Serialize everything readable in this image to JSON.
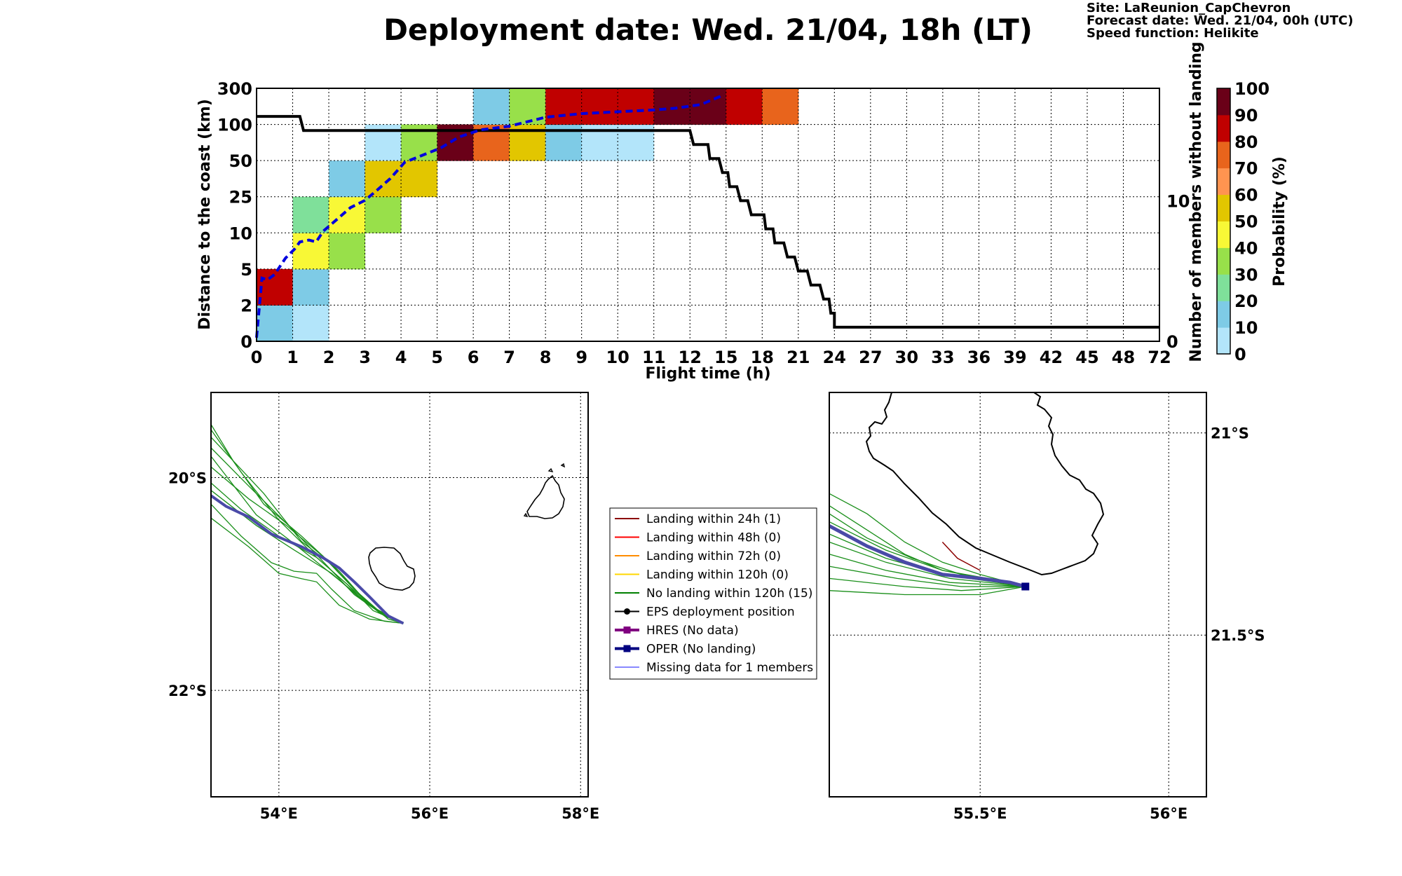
{
  "header": {
    "title": "Deployment date: Wed. 21/04, 18h (LT)",
    "info": [
      "Site: LaReunion_CapChevron",
      "Forecast date: Wed. 21/04, 00h (UTC)",
      "Speed function: Helikite"
    ]
  },
  "chart_data": [
    {
      "type": "heatmap",
      "xlabel": "Flight time (h)",
      "ylabel": "Distance to the coast (km)",
      "y2label": "Number of members without landing",
      "x_ticks": [
        "0",
        "1",
        "2",
        "3",
        "4",
        "5",
        "6",
        "7",
        "8",
        "9",
        "10",
        "11",
        "12",
        "15",
        "18",
        "21",
        "24",
        "27",
        "30",
        "33",
        "36",
        "39",
        "42",
        "45",
        "48",
        "72"
      ],
      "y_ticks": [
        "0",
        "2",
        "5",
        "10",
        "25",
        "50",
        "100",
        "300"
      ],
      "y2_ticks": [
        {
          "label": "0",
          "value": 0
        },
        {
          "label": "10",
          "value": 10
        }
      ],
      "y2lim": [
        0,
        18
      ],
      "colorbar": {
        "label": "Probability (%)",
        "ticks": [
          "0",
          "10",
          "20",
          "30",
          "40",
          "50",
          "60",
          "70",
          "80",
          "90",
          "100"
        ],
        "colors": [
          "#b3e5fa",
          "#7ecbe6",
          "#7fe09a",
          "#98e04a",
          "#f8f836",
          "#e2c600",
          "#ff9450",
          "#e8641c",
          "#c00000",
          "#6a0018"
        ]
      },
      "cells": [
        {
          "x": 0,
          "y": 0,
          "p": 10
        },
        {
          "x": 0,
          "y": 1,
          "p": 80
        },
        {
          "x": 1,
          "y": 0,
          "p": 5
        },
        {
          "x": 1,
          "y": 1,
          "p": 10
        },
        {
          "x": 1,
          "y": 2,
          "p": 40
        },
        {
          "x": 1,
          "y": 3,
          "p": 20
        },
        {
          "x": 2,
          "y": 2,
          "p": 30
        },
        {
          "x": 2,
          "y": 3,
          "p": 40
        },
        {
          "x": 2,
          "y": 4,
          "p": 10
        },
        {
          "x": 3,
          "y": 3,
          "p": 30
        },
        {
          "x": 3,
          "y": 4,
          "p": 50
        },
        {
          "x": 3,
          "y": 5,
          "p": 5
        },
        {
          "x": 4,
          "y": 4,
          "p": 50
        },
        {
          "x": 4,
          "y": 5,
          "p": 30
        },
        {
          "x": 5,
          "y": 5,
          "p": 95
        },
        {
          "x": 6,
          "y": 5,
          "p": 70
        },
        {
          "x": 6,
          "y": 6,
          "p": 10
        },
        {
          "x": 7,
          "y": 5,
          "p": 50
        },
        {
          "x": 7,
          "y": 6,
          "p": 30
        },
        {
          "x": 8,
          "y": 5,
          "p": 10
        },
        {
          "x": 8,
          "y": 6,
          "p": 85
        },
        {
          "x": 9,
          "y": 5,
          "p": 5
        },
        {
          "x": 9,
          "y": 6,
          "p": 85
        },
        {
          "x": 10,
          "y": 5,
          "p": 5
        },
        {
          "x": 10,
          "y": 6,
          "p": 85
        },
        {
          "x": 11,
          "y": 6,
          "p": 95
        },
        {
          "x": 12,
          "y": 6,
          "p": 95
        },
        {
          "x": 13,
          "y": 6,
          "p": 85
        },
        {
          "x": 14,
          "y": 6,
          "p": 75
        }
      ],
      "median_distance": [
        [
          0,
          0.1
        ],
        [
          0.15,
          1.75
        ],
        [
          0.3,
          1.7
        ],
        [
          0.5,
          1.85
        ],
        [
          0.8,
          2.3
        ],
        [
          1.05,
          2.55
        ],
        [
          1.2,
          2.75
        ],
        [
          1.45,
          2.8
        ],
        [
          1.65,
          2.75
        ],
        [
          1.85,
          3.05
        ],
        [
          2.2,
          3.35
        ],
        [
          2.6,
          3.7
        ],
        [
          3,
          3.9
        ],
        [
          3.3,
          4.15
        ],
        [
          3.7,
          4.5
        ],
        [
          4.1,
          4.95
        ],
        [
          4.6,
          5.15
        ],
        [
          5.1,
          5.35
        ],
        [
          5.6,
          5.65
        ],
        [
          6.2,
          5.85
        ],
        [
          7,
          5.95
        ],
        [
          8,
          6.2
        ],
        [
          9,
          6.3
        ],
        [
          10,
          6.35
        ],
        [
          11,
          6.4
        ],
        [
          11.6,
          6.45
        ],
        [
          12.3,
          6.55
        ],
        [
          12.9,
          6.8
        ]
      ],
      "members_without_landing": [
        [
          0,
          16
        ],
        [
          1.2,
          16
        ],
        [
          1.3,
          15
        ],
        [
          12,
          15
        ],
        [
          12.1,
          14
        ],
        [
          12.5,
          14
        ],
        [
          12.55,
          13
        ],
        [
          12.8,
          13
        ],
        [
          12.9,
          12
        ],
        [
          13.05,
          12
        ],
        [
          13.1,
          11
        ],
        [
          13.3,
          11
        ],
        [
          13.4,
          10
        ],
        [
          13.6,
          10
        ],
        [
          13.7,
          9
        ],
        [
          14.05,
          9
        ],
        [
          14.1,
          8
        ],
        [
          14.3,
          8
        ],
        [
          14.35,
          7
        ],
        [
          14.6,
          7
        ],
        [
          14.7,
          6
        ],
        [
          14.9,
          6
        ],
        [
          15,
          5
        ],
        [
          15.25,
          5
        ],
        [
          15.35,
          4
        ],
        [
          15.6,
          4
        ],
        [
          15.7,
          3
        ],
        [
          15.85,
          3
        ],
        [
          15.9,
          2
        ],
        [
          16,
          2
        ],
        [
          16,
          1
        ],
        [
          25,
          1
        ]
      ]
    },
    {
      "type": "map",
      "name": "regional",
      "lon_range": [
        53.1,
        58.1
      ],
      "lat_range": [
        -23.0,
        -19.2
      ],
      "lon_ticks": [
        {
          "label": "54°E",
          "value": 54
        },
        {
          "label": "56°E",
          "value": 56
        },
        {
          "label": "58°E",
          "value": 58
        }
      ],
      "lat_ticks": [
        {
          "label": "20°S",
          "value": -20
        },
        {
          "label": "22°S",
          "value": -22
        }
      ],
      "start": [
        55.65,
        -21.37
      ],
      "oper_track": [
        [
          53.1,
          -20.17
        ],
        [
          53.3,
          -20.27
        ],
        [
          53.6,
          -20.37
        ],
        [
          53.9,
          -20.53
        ],
        [
          54.3,
          -20.65
        ],
        [
          54.6,
          -20.76
        ],
        [
          54.8,
          -20.85
        ],
        [
          55.0,
          -20.98
        ],
        [
          55.2,
          -21.12
        ],
        [
          55.45,
          -21.3
        ],
        [
          55.65,
          -21.37
        ]
      ],
      "member_tracks": [
        [
          [
            53.1,
            -19.5
          ],
          [
            53.4,
            -19.85
          ],
          [
            53.8,
            -20.25
          ],
          [
            54.3,
            -20.55
          ],
          [
            54.8,
            -20.88
          ],
          [
            55.2,
            -21.2
          ],
          [
            55.65,
            -21.37
          ]
        ],
        [
          [
            53.1,
            -19.55
          ],
          [
            53.5,
            -19.95
          ],
          [
            54.0,
            -20.4
          ],
          [
            54.5,
            -20.75
          ],
          [
            54.9,
            -21.0
          ],
          [
            55.25,
            -21.25
          ],
          [
            55.65,
            -21.37
          ]
        ],
        [
          [
            53.1,
            -19.72
          ],
          [
            53.6,
            -20.08
          ],
          [
            54.2,
            -20.5
          ],
          [
            54.6,
            -20.8
          ],
          [
            55.0,
            -21.1
          ],
          [
            55.4,
            -21.3
          ],
          [
            55.65,
            -21.37
          ]
        ],
        [
          [
            53.1,
            -19.9
          ],
          [
            53.6,
            -20.2
          ],
          [
            54.1,
            -20.45
          ],
          [
            54.6,
            -20.75
          ],
          [
            55.0,
            -21.05
          ],
          [
            55.4,
            -21.3
          ],
          [
            55.65,
            -21.37
          ]
        ],
        [
          [
            53.1,
            -20.05
          ],
          [
            53.5,
            -20.3
          ],
          [
            54.0,
            -20.55
          ],
          [
            54.5,
            -20.75
          ],
          [
            54.9,
            -21.0
          ],
          [
            55.3,
            -21.25
          ],
          [
            55.65,
            -21.37
          ]
        ],
        [
          [
            53.1,
            -20.25
          ],
          [
            53.5,
            -20.55
          ],
          [
            53.9,
            -20.8
          ],
          [
            54.2,
            -20.88
          ],
          [
            54.5,
            -20.9
          ],
          [
            54.7,
            -21.05
          ],
          [
            55.0,
            -21.25
          ],
          [
            55.4,
            -21.35
          ],
          [
            55.65,
            -21.37
          ]
        ],
        [
          [
            53.1,
            -20.38
          ],
          [
            53.6,
            -20.65
          ],
          [
            54.0,
            -20.9
          ],
          [
            54.3,
            -20.95
          ],
          [
            54.5,
            -20.98
          ],
          [
            54.8,
            -21.2
          ],
          [
            55.2,
            -21.33
          ],
          [
            55.65,
            -21.37
          ]
        ],
        [
          [
            53.1,
            -19.62
          ],
          [
            53.8,
            -20.15
          ],
          [
            54.3,
            -20.6
          ],
          [
            54.7,
            -20.82
          ],
          [
            55.1,
            -21.12
          ],
          [
            55.45,
            -21.33
          ],
          [
            55.65,
            -21.37
          ]
        ],
        [
          [
            53.1,
            -19.8
          ],
          [
            53.7,
            -20.35
          ],
          [
            54.2,
            -20.62
          ],
          [
            54.6,
            -20.85
          ],
          [
            54.95,
            -21.05
          ],
          [
            55.35,
            -21.28
          ],
          [
            55.65,
            -21.37
          ]
        ],
        [
          [
            53.1,
            -20.12
          ],
          [
            53.7,
            -20.45
          ],
          [
            54.2,
            -20.68
          ],
          [
            54.7,
            -20.9
          ],
          [
            55.1,
            -21.15
          ],
          [
            55.5,
            -21.33
          ],
          [
            55.65,
            -21.37
          ]
        ]
      ]
    },
    {
      "type": "map",
      "name": "zoom",
      "lon_range": [
        55.1,
        56.1
      ],
      "lat_range": [
        -21.9,
        -20.9
      ],
      "lon_ticks": [
        {
          "label": "55.5°E",
          "value": 55.5
        },
        {
          "label": "56°E",
          "value": 56
        }
      ],
      "lat_ticks": [
        {
          "label": "21°S",
          "value": -21
        },
        {
          "label": "21.5°S",
          "value": -21.5
        }
      ],
      "start": [
        55.62,
        -21.38
      ],
      "oper_track": [
        [
          55.1,
          -21.23
        ],
        [
          55.2,
          -21.28
        ],
        [
          55.3,
          -21.32
        ],
        [
          55.4,
          -21.35
        ],
        [
          55.5,
          -21.36
        ],
        [
          55.58,
          -21.37
        ],
        [
          55.62,
          -21.38
        ]
      ],
      "member_tracks": [
        [
          [
            55.1,
            -21.15
          ],
          [
            55.2,
            -21.2
          ],
          [
            55.3,
            -21.27
          ],
          [
            55.4,
            -21.32
          ],
          [
            55.5,
            -21.35
          ],
          [
            55.62,
            -21.38
          ]
        ],
        [
          [
            55.1,
            -21.18
          ],
          [
            55.2,
            -21.24
          ],
          [
            55.3,
            -21.3
          ],
          [
            55.4,
            -21.34
          ],
          [
            55.52,
            -21.36
          ],
          [
            55.62,
            -21.38
          ]
        ],
        [
          [
            55.1,
            -21.2
          ],
          [
            55.2,
            -21.26
          ],
          [
            55.32,
            -21.31
          ],
          [
            55.45,
            -21.35
          ],
          [
            55.62,
            -21.38
          ]
        ],
        [
          [
            55.1,
            -21.22
          ],
          [
            55.25,
            -21.29
          ],
          [
            55.4,
            -21.34
          ],
          [
            55.62,
            -21.38
          ]
        ],
        [
          [
            55.1,
            -21.25
          ],
          [
            55.25,
            -21.31
          ],
          [
            55.4,
            -21.35
          ],
          [
            55.62,
            -21.38
          ]
        ],
        [
          [
            55.1,
            -21.27
          ],
          [
            55.25,
            -21.32
          ],
          [
            55.42,
            -21.36
          ],
          [
            55.62,
            -21.38
          ]
        ],
        [
          [
            55.1,
            -21.3
          ],
          [
            55.25,
            -21.34
          ],
          [
            55.42,
            -21.37
          ],
          [
            55.62,
            -21.38
          ]
        ],
        [
          [
            55.1,
            -21.33
          ],
          [
            55.28,
            -21.36
          ],
          [
            55.45,
            -21.38
          ],
          [
            55.62,
            -21.38
          ]
        ],
        [
          [
            55.1,
            -21.36
          ],
          [
            55.3,
            -21.38
          ],
          [
            55.45,
            -21.39
          ],
          [
            55.62,
            -21.38
          ]
        ],
        [
          [
            55.1,
            -21.39
          ],
          [
            55.3,
            -21.4
          ],
          [
            55.5,
            -21.4
          ],
          [
            55.62,
            -21.38
          ]
        ]
      ],
      "landing_track_24h": [
        [
          55.4,
          -21.27
        ],
        [
          55.44,
          -21.31
        ],
        [
          55.5,
          -21.34
        ]
      ]
    }
  ],
  "legend": {
    "items": [
      {
        "label": "Landing within 24h (1)",
        "color": "#8b0000",
        "style": "line"
      },
      {
        "label": "Landing within 48h (0)",
        "color": "#ff0000",
        "style": "line"
      },
      {
        "label": "Landing within 72h (0)",
        "color": "#ff8c00",
        "style": "line"
      },
      {
        "label": "Landing within 120h (0)",
        "color": "#ffd700",
        "style": "line"
      },
      {
        "label": "No landing within 120h (15)",
        "color": "#008000",
        "style": "line"
      },
      {
        "label": "EPS deployment position",
        "color": "#000000",
        "style": "dot"
      },
      {
        "label": "HRES (No data)",
        "color": "#800080",
        "style": "square"
      },
      {
        "label": "OPER (No landing)",
        "color": "#000080",
        "style": "square"
      },
      {
        "label": "Missing data for 1 members",
        "color": "#4040ff",
        "style": "thin"
      }
    ]
  },
  "colors": {
    "median_line": "#0000dd",
    "members_line": "#000000",
    "member_track": "#1a8f1a",
    "oper_track": "#4a4aa8",
    "start_marker": "#000080"
  }
}
